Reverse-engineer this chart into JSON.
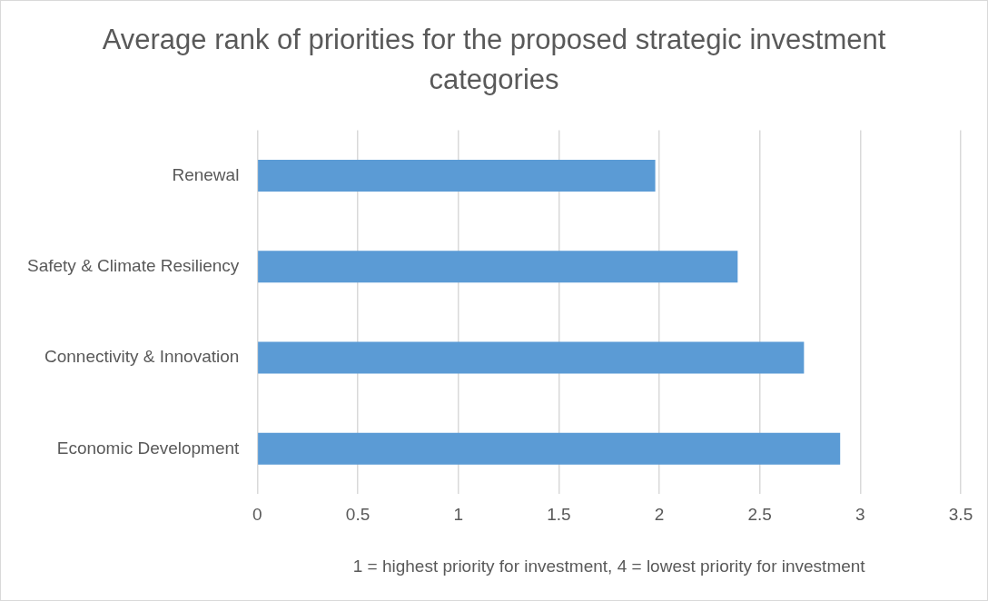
{
  "chart_data": {
    "type": "bar",
    "orientation": "horizontal",
    "title": "Average rank of priorities for the proposed strategic investment categories",
    "xlabel": "1 = highest priority for investment, 4 = lowest priority for investment",
    "categories": [
      "Renewal",
      "Safety & Climate Resiliency",
      "Connectivity & Innovation",
      "Economic Development"
    ],
    "values": [
      1.98,
      2.39,
      2.72,
      2.9
    ],
    "color": "#5b9bd5",
    "xlim": [
      0,
      3.5
    ],
    "xticks": [
      0,
      0.5,
      1,
      1.5,
      2,
      2.5,
      3,
      3.5
    ],
    "grid": "x",
    "legend": false
  }
}
